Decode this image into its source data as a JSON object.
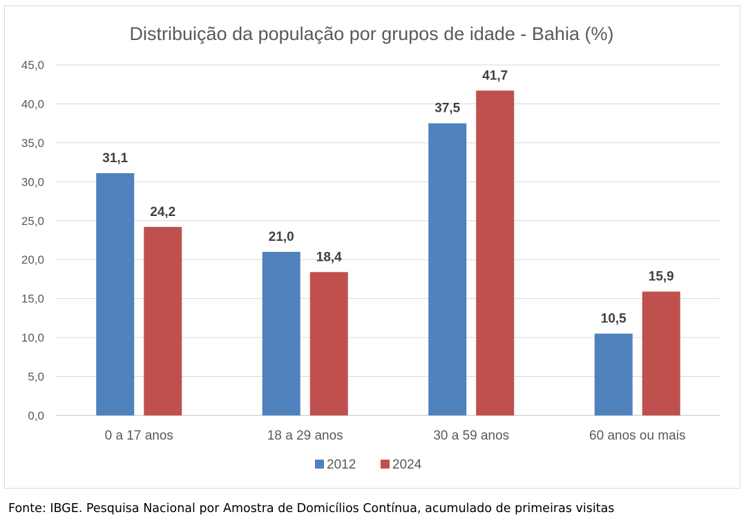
{
  "chart_data": {
    "type": "bar",
    "title": "Distribuição da população por grupos de idade - Bahia (%)",
    "xlabel": "",
    "ylabel": "",
    "categories": [
      "0 a 17 anos",
      "18 a 29 anos",
      "30 a 59 anos",
      "60 anos ou mais"
    ],
    "series": [
      {
        "name": "2012",
        "values": [
          31.1,
          21.0,
          37.5,
          10.5
        ],
        "labels": [
          "31,1",
          "21,0",
          "37,5",
          "10,5"
        ],
        "color": "#4f81bd"
      },
      {
        "name": "2024",
        "values": [
          24.2,
          18.4,
          41.7,
          15.9
        ],
        "labels": [
          "24,2",
          "18,4",
          "41,7",
          "15,9"
        ],
        "color": "#c0504d"
      }
    ],
    "ylim": [
      0,
      45
    ],
    "yticks": [
      "0,0",
      "5,0",
      "10,0",
      "15,0",
      "20,0",
      "25,0",
      "30,0",
      "35,0",
      "40,0",
      "45,0"
    ],
    "grid": true,
    "legend": "bottom"
  },
  "source_note": "Fonte: IBGE. Pesquisa Nacional por Amostra de Domicílios Contínua, acumulado de primeiras visitas"
}
